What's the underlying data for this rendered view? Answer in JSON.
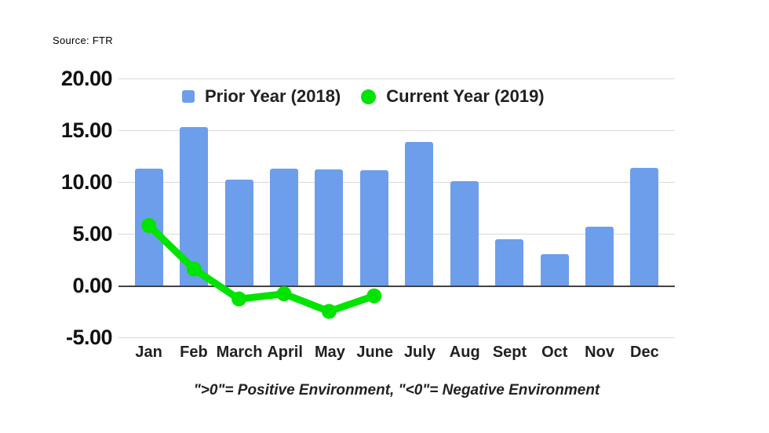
{
  "source_label": "Source: FTR",
  "caption": "\">0\"= Positive Environment, \"<0\"= Negative Environment",
  "colors": {
    "bar": "#6d9eeb",
    "line": "#00e400",
    "gridline": "#d9d9d9",
    "zero_line": "#424242",
    "text": "#212121"
  },
  "legend": {
    "position": "top",
    "items": [
      {
        "label": "Prior Year (2018)",
        "swatch": "square",
        "color": "#6d9eeb"
      },
      {
        "label": "Current Year (2019)",
        "swatch": "circle",
        "color": "#00e400"
      }
    ]
  },
  "chart_data": {
    "type": "bar",
    "categories": [
      "Jan",
      "Feb",
      "March",
      "April",
      "May",
      "June",
      "July",
      "Aug",
      "Sept",
      "Oct",
      "Nov",
      "Dec"
    ],
    "series": [
      {
        "name": "Prior Year (2018)",
        "type": "bar",
        "color": "#6d9eeb",
        "values": [
          11.3,
          15.3,
          10.2,
          11.3,
          11.2,
          11.1,
          13.9,
          10.1,
          4.5,
          3.0,
          5.7,
          11.4
        ]
      },
      {
        "name": "Current Year (2019)",
        "type": "line",
        "color": "#00e400",
        "values": [
          5.8,
          1.6,
          -1.3,
          -0.8,
          -2.5,
          -1.0,
          null,
          null,
          null,
          null,
          null,
          null
        ]
      }
    ],
    "ylim": [
      -5,
      20
    ],
    "yticks": [
      20,
      15,
      10,
      5,
      0,
      -5
    ],
    "ytick_labels": [
      "20.00",
      "15.00",
      "10.00",
      "5.00",
      "0.00",
      "-5.00"
    ],
    "grid": true,
    "legend_position": "top",
    "xlabel": "",
    "ylabel": ""
  }
}
